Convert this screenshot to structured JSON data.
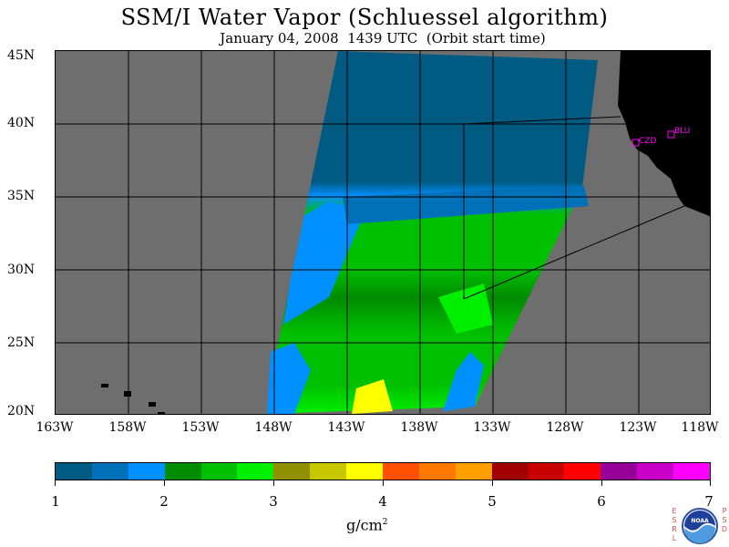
{
  "title": "SSM/I Water Vapor (Schluessel algorithm)",
  "subtitle": "January 04, 2008  1439 UTC  (Orbit start time)",
  "map": {
    "lat_labels": [
      "45N",
      "40N",
      "35N",
      "30N",
      "25N",
      "20N"
    ],
    "lon_labels": [
      "163W",
      "158W",
      "153W",
      "148W",
      "143W",
      "138W",
      "133W",
      "128W",
      "123W",
      "118W"
    ],
    "stations": [
      {
        "id": "CZD",
        "lat": 38.6,
        "lon": -123.2
      },
      {
        "id": "BLU",
        "lat": 39.3,
        "lon": -120.8
      }
    ],
    "colors": {
      "background_no_data": "#6e6e6e",
      "land": "#000000",
      "grid": "#000000",
      "station_marker": "#ff00ff"
    }
  },
  "colorbar": {
    "colors": [
      "#005a82",
      "#0070b8",
      "#0090ff",
      "#008c00",
      "#00c000",
      "#00f000",
      "#909000",
      "#c8c800",
      "#ffff00",
      "#ff5000",
      "#ff7800",
      "#ffa000",
      "#a00000",
      "#c80000",
      "#ff0000",
      "#960096",
      "#c800c8",
      "#ff00ff"
    ],
    "labels": [
      "1",
      "2",
      "3",
      "4",
      "5",
      "6",
      "7"
    ],
    "units_base": "g/cm",
    "units_exp": "2"
  },
  "logo": {
    "text": "NOAA",
    "left_letters": [
      "E",
      "S",
      "R",
      "L"
    ],
    "right_letters": [
      "P",
      "S",
      "D"
    ]
  }
}
